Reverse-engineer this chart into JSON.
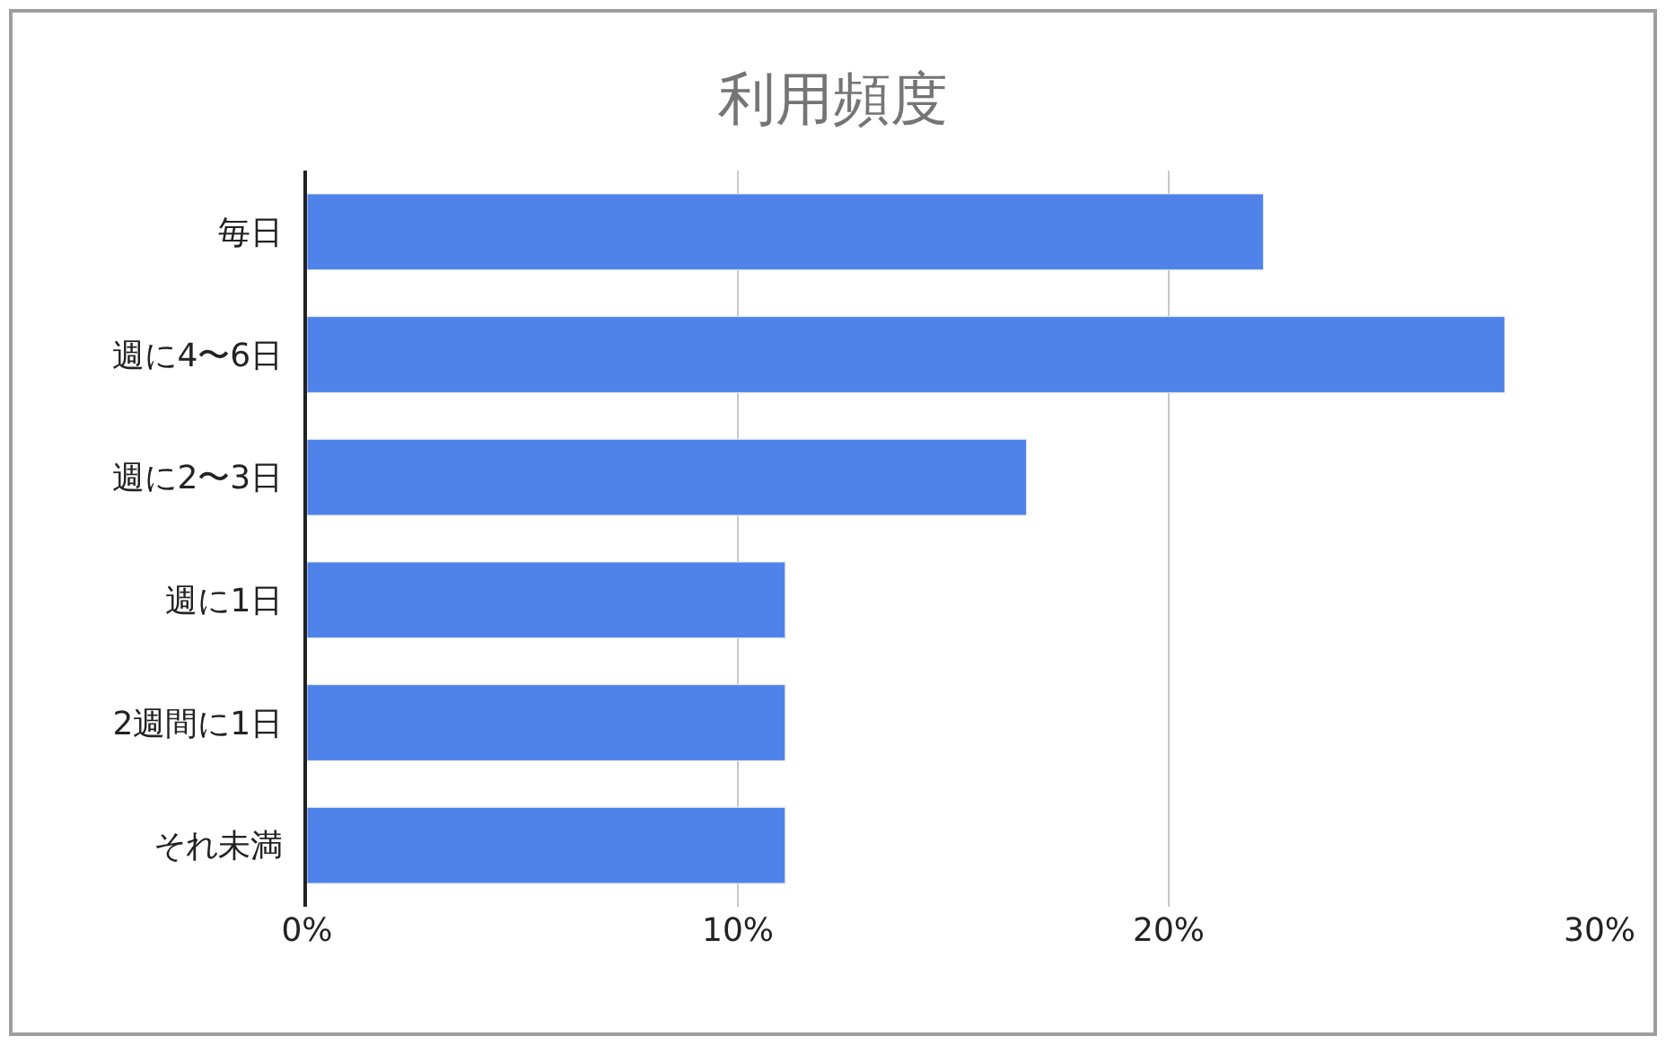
{
  "chart_data": {
    "type": "bar",
    "orientation": "horizontal",
    "title": "利用頻度",
    "categories": [
      "毎日",
      "週に4〜6日",
      "週に2〜3日",
      "週に1日",
      "2週間に1日",
      "それ未満"
    ],
    "values": [
      22.2,
      27.8,
      16.7,
      11.1,
      11.1,
      11.1
    ],
    "color": "#4f83ea",
    "xlim": [
      0,
      30
    ],
    "xticks": [
      {
        "value": 0,
        "label": "0%"
      },
      {
        "value": 10,
        "label": "10%"
      },
      {
        "value": 20,
        "label": "20%"
      },
      {
        "value": 30,
        "label": "30%"
      }
    ],
    "grid": "x"
  }
}
